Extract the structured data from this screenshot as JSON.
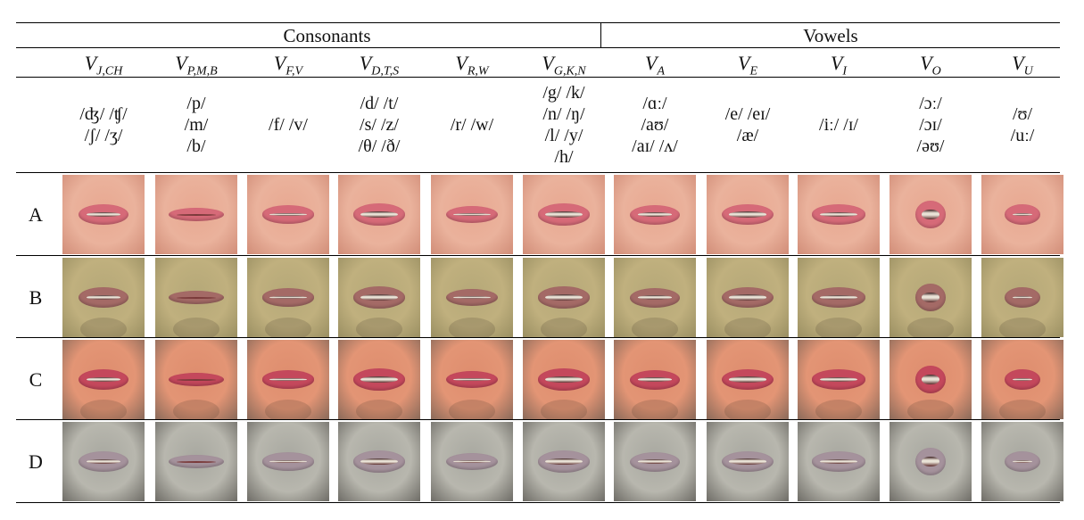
{
  "header": {
    "consonants": "Consonants",
    "vowels": "Vowels"
  },
  "visemes": [
    {
      "base": "V",
      "sub": "J,CH",
      "phonemes": [
        "/ʤ/ /ʧ/",
        "/ʃ/ /ʒ/"
      ]
    },
    {
      "base": "V",
      "sub": "P,M,B",
      "phonemes": [
        "/p/",
        "/m/",
        "/b/"
      ]
    },
    {
      "base": "V",
      "sub": "F,V",
      "phonemes": [
        "/f/ /v/"
      ]
    },
    {
      "base": "V",
      "sub": "D,T,S",
      "phonemes": [
        "/d/ /t/",
        "/s/ /z/",
        "/θ/ /ð/"
      ]
    },
    {
      "base": "V",
      "sub": "R,W",
      "phonemes": [
        "/r/ /w/"
      ]
    },
    {
      "base": "V",
      "sub": "G,K,N",
      "phonemes": [
        "/g/ /k/",
        "/n/ /ŋ/",
        "/l/ /y/",
        "/h/"
      ]
    },
    {
      "base": "V",
      "sub": "A",
      "phonemes": [
        "/ɑː/",
        "/aʊ/",
        "/aɪ/ /ʌ/"
      ]
    },
    {
      "base": "V",
      "sub": "E",
      "phonemes": [
        "/e/ /eɪ/",
        "/æ/"
      ]
    },
    {
      "base": "V",
      "sub": "I",
      "phonemes": [
        "/iː/ /ɪ/"
      ]
    },
    {
      "base": "V",
      "sub": "O",
      "phonemes": [
        "/ɔː/",
        "/ɔɪ/",
        "/əʊ/"
      ]
    },
    {
      "base": "V",
      "sub": "U",
      "phonemes": [
        "/ʊ/",
        "/uː/"
      ]
    }
  ],
  "rows": [
    {
      "label": "A",
      "skin": "#e8a891",
      "skin_dark": "#d18d78",
      "lip": "#d66a78",
      "bg": "#eab29c"
    },
    {
      "label": "B",
      "skin": "#b5a878",
      "skin_dark": "#9a8f62",
      "lip": "#a46a66",
      "bg": "#c0b07e"
    },
    {
      "label": "C",
      "skin": "#de8d6e",
      "skin_dark": "#8a6a5a",
      "lip": "#c4485c",
      "bg": "#e39575"
    },
    {
      "label": "D",
      "skin": "#a8a8a0",
      "skin_dark": "#6e6c66",
      "lip": "#a5929c",
      "bg": "#b8b7ae"
    }
  ],
  "mouth_openness": [
    0.45,
    0.15,
    0.35,
    0.55,
    0.3,
    0.55,
    0.4,
    0.5,
    0.45,
    0.65,
    0.3
  ],
  "mouth_roundness": [
    0.2,
    0.0,
    0.1,
    0.1,
    0.1,
    0.1,
    0.2,
    0.1,
    0.05,
    0.85,
    0.7
  ]
}
